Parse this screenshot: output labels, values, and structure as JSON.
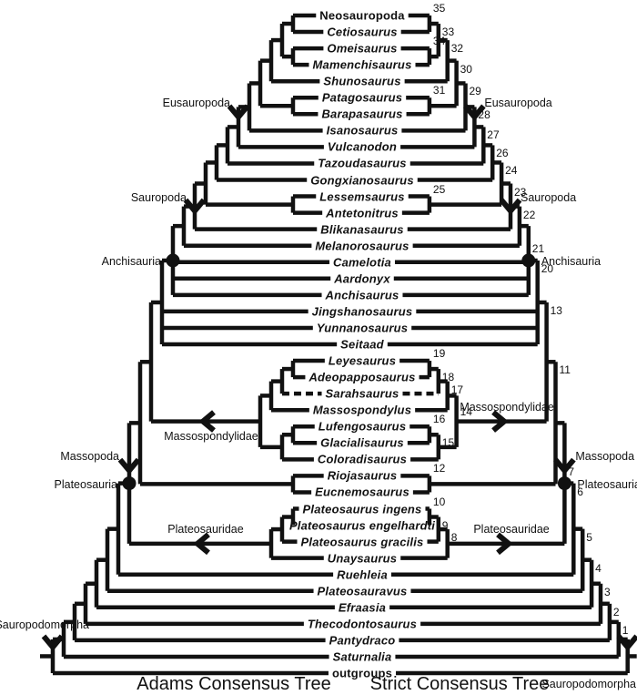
{
  "figure": {
    "left_tree_title": "Adams Consensus Tree",
    "right_tree_title": "Strict Consensus Tree",
    "line_color": "#111111",
    "background": "#ffffff"
  },
  "clade_labels": {
    "sauropodomorpha": "Sauropodomorpha",
    "eusauropoda": "Eusauropoda",
    "sauropoda": "Sauropoda",
    "anchisauria": "Anchisauria",
    "massospondylidae": "Massospondylidae",
    "massopoda": "Massopoda",
    "plateosauria": "Plateosauria",
    "plateosauridae": "Plateosauridae"
  },
  "taxa": [
    {
      "name": "Neosauropoda",
      "rank": "clade"
    },
    {
      "name": "Cetiosaurus",
      "rank": "genus"
    },
    {
      "name": "Omeisaurus",
      "rank": "genus"
    },
    {
      "name": "Mamenchisaurus",
      "rank": "genus"
    },
    {
      "name": "Shunosaurus",
      "rank": "genus"
    },
    {
      "name": "Patagosaurus",
      "rank": "genus"
    },
    {
      "name": "Barapasaurus",
      "rank": "genus"
    },
    {
      "name": "Isanosaurus",
      "rank": "genus"
    },
    {
      "name": "Vulcanodon",
      "rank": "genus"
    },
    {
      "name": "Tazoudasaurus",
      "rank": "genus"
    },
    {
      "name": "Gongxianosaurus",
      "rank": "genus"
    },
    {
      "name": "Lessemsaurus",
      "rank": "genus"
    },
    {
      "name": "Antetonitrus",
      "rank": "genus"
    },
    {
      "name": "Blikanasaurus",
      "rank": "genus"
    },
    {
      "name": "Melanorosaurus",
      "rank": "genus"
    },
    {
      "name": "Camelotia",
      "rank": "genus"
    },
    {
      "name": "Aardonyx",
      "rank": "genus"
    },
    {
      "name": "Anchisaurus",
      "rank": "genus"
    },
    {
      "name": "Jingshanosaurus",
      "rank": "genus"
    },
    {
      "name": "Yunnanosaurus",
      "rank": "genus"
    },
    {
      "name": "Seitaad",
      "rank": "genus"
    },
    {
      "name": "Leyesaurus",
      "rank": "genus"
    },
    {
      "name": "Adeopapposaurus",
      "rank": "genus"
    },
    {
      "name": "Sarahsaurus",
      "rank": "genus",
      "dashed": true
    },
    {
      "name": "Massospondylus",
      "rank": "genus"
    },
    {
      "name": "Lufengosaurus",
      "rank": "genus"
    },
    {
      "name": "Glacialisaurus",
      "rank": "genus"
    },
    {
      "name": "Coloradisaurus",
      "rank": "genus"
    },
    {
      "name": "Riojasaurus",
      "rank": "genus"
    },
    {
      "name": "Eucnemosaurus",
      "rank": "genus"
    },
    {
      "name": "Plateosaurus ingens",
      "rank": "species"
    },
    {
      "name": "Plateosaurus engelhardti",
      "rank": "species"
    },
    {
      "name": "Plateosaurus gracilis",
      "rank": "species"
    },
    {
      "name": "Unaysaurus",
      "rank": "genus"
    },
    {
      "name": "Ruehleia",
      "rank": "genus"
    },
    {
      "name": "Plateosauravus",
      "rank": "genus"
    },
    {
      "name": "Efraasia",
      "rank": "genus"
    },
    {
      "name": "Thecodontosaurus",
      "rank": "genus"
    },
    {
      "name": "Pantydraco",
      "rank": "genus"
    },
    {
      "name": "Saturnalia",
      "rank": "genus"
    },
    {
      "name": "outgroups",
      "rank": "clade"
    }
  ],
  "tree": {
    "num": null,
    "chev_bar": "sauropodomorpha",
    "chev_dy": -13,
    "stub": true,
    "c": [
      {
        "num": 1,
        "c": [
          {
            "num": 2,
            "c": [
              {
                "num": 3,
                "c": [
                  {
                    "num": 4,
                    "c": [
                      {
                        "num": 5,
                        "c": [
                          {
                            "num": 6,
                            "c": [
                              {
                                "num": 7,
                                "circle": "plateosauria",
                                "chev_above": "massopoda",
                                "c": [
                                  {
                                    "num": 11,
                                    "c": [
                                      {
                                        "num": 13,
                                        "c": [
                                          {
                                            "num": 20,
                                            "c": [
                                              {
                                                "num": 21,
                                                "circle": "anchisauria",
                                                "c": [
                                                  {
                                                    "num": 22,
                                                    "c": [
                                                      {
                                                        "num": 23,
                                                        "chev_bar": "sauropoda",
                                                        "chev_dy": 2,
                                                        "c": [
                                                          {
                                                            "num": 24,
                                                            "c": [
                                                              {
                                                                "num": 26,
                                                                "c": [
                                                                  {
                                                                    "num": 27,
                                                                    "c": [
                                                                      {
                                                                        "num": 28,
                                                                        "chev_bar": "eusauropoda",
                                                                        "chev_dy": -14,
                                                                        "c": [
                                                                          {
                                                                            "num": 29,
                                                                            "c": [
                                                                              {
                                                                                "num": 30,
                                                                                "c": [
                                                                                  {
                                                                                    "num": 32,
                                                                                    "c": [
                                                                                      {
                                                                                        "num": 33,
                                                                                        "c": [
                                                                                          {
                                                                                            "num": 35,
                                                                                            "c": [
                                                                                              "Neosauropoda",
                                                                                              "Cetiosaurus"
                                                                                            ]
                                                                                          },
                                                                                          {
                                                                                            "num": 34,
                                                                                            "c": [
                                                                                              "Omeisaurus",
                                                                                              "Mamenchisaurus"
                                                                                            ]
                                                                                          }
                                                                                        ]
                                                                                      },
                                                                                      "Shunosaurus"
                                                                                    ]
                                                                                  },
                                                                                  {
                                                                                    "num": 31,
                                                                                    "c": [
                                                                                      "Patagosaurus",
                                                                                      "Barapasaurus"
                                                                                    ]
                                                                                  }
                                                                                ]
                                                                              },
                                                                              "Isanosaurus"
                                                                            ]
                                                                          },
                                                                          "Vulcanodon"
                                                                        ]
                                                                      },
                                                                      "Tazoudasaurus"
                                                                    ]
                                                                  },
                                                                  "Gongxianosaurus"
                                                                ]
                                                              },
                                                              {
                                                                "num": 25,
                                                                "c": [
                                                                  "Lessemsaurus",
                                                                  "Antetonitrus"
                                                                ]
                                                              }
                                                            ]
                                                          },
                                                          "Blikanasaurus"
                                                        ]
                                                      },
                                                      "Melanorosaurus"
                                                    ]
                                                  },
                                                  "Camelotia",
                                                  "Aardonyx",
                                                  "Anchisaurus"
                                                ]
                                              },
                                              "Jingshanosaurus",
                                              "Yunnanosaurus",
                                              "Seitaad"
                                            ]
                                          },
                                          {
                                            "num": 14,
                                            "chev_stem": "massospondylidae",
                                            "num_dy": 18,
                                            "c": [
                                              {
                                                "num": 17,
                                                "c": [
                                                  {
                                                    "num": 18,
                                                    "c": [
                                                      {
                                                        "num": 19,
                                                        "c": [
                                                          "Leyesaurus",
                                                          "Adeopapposaurus"
                                                        ]
                                                      },
                                                      "Sarahsaurus"
                                                    ]
                                                  },
                                                  "Massospondylus"
                                                ]
                                              },
                                              {
                                                "num": 15,
                                                "c": [
                                                  {
                                                    "num": 16,
                                                    "c": [
                                                      "Lufengosaurus",
                                                      "Glacialisaurus"
                                                    ]
                                                  },
                                                  "Coloradisaurus"
                                                ]
                                              }
                                            ]
                                          }
                                        ]
                                      },
                                      {
                                        "num": 12,
                                        "c": [
                                          "Riojasaurus",
                                          "Eucnemosaurus"
                                        ]
                                      }
                                    ]
                                  },
                                  {
                                    "num": 8,
                                    "chev_stem": "plateosauridae",
                                    "c": [
                                      {
                                        "num": 9,
                                        "c": [
                                          {
                                            "num": 10,
                                            "c": [
                                              "Plateosaurus ingens",
                                              "Plateosaurus engelhardti"
                                            ]
                                          },
                                          "Plateosaurus gracilis"
                                        ]
                                      },
                                      "Unaysaurus"
                                    ]
                                  }
                                ]
                              },
                              "Ruehleia"
                            ]
                          },
                          "Plateosauravus"
                        ]
                      },
                      "Efraasia"
                    ]
                  },
                  "Thecodontosaurus"
                ]
              },
              "Pantydraco"
            ]
          },
          "Saturnalia"
        ]
      },
      "outgroups"
    ]
  }
}
